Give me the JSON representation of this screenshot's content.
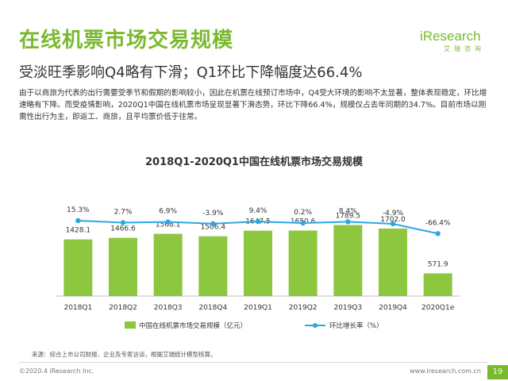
{
  "header": {
    "title": "在线机票市场交易规模",
    "logo_text": "iResearch",
    "logo_sub": "艾瑞咨询",
    "subtitle": "受淡旺季影响Q4略有下滑；Q1环比下降幅度达66.4%",
    "body": "由于以商旅为代表的出行需要受季节和假期的影响较小，因此在机票在线预订市场中，Q4受大环境的影响不太显著，整体表现稳定，环比增速略有下降。而受疫情影响，2020Q1中国在线机票市场呈现显著下滑态势，环比下降66.4%，规模仅占去年同期的34.7%。目前市场以刚需性出行为主，即返工、商旅，且平均票价低于往常。"
  },
  "chart_data": {
    "type": "bar",
    "title": "2018Q1-2020Q1中国在线机票市场交易规模",
    "categories": [
      "2018Q1",
      "2018Q2",
      "2018Q3",
      "2018Q4",
      "2019Q1",
      "2019Q2",
      "2019Q3",
      "2019Q4",
      "2020Q1e"
    ],
    "series": [
      {
        "name": "中国在线机票市场交易规模（亿元）",
        "type": "bar",
        "color": "#8dc63f",
        "values": [
          1428.1,
          1466.6,
          1568.1,
          1506.4,
          1647.5,
          1650.6,
          1789.5,
          1702.0,
          571.9
        ],
        "labels": [
          "1428.1",
          "1466.6",
          "1568.1",
          "1506.4",
          "1647.5",
          "1650.6",
          "1789.5",
          "1702.0",
          "571.9"
        ]
      },
      {
        "name": "环比增长率（%）",
        "type": "line",
        "color": "#2ea7e0",
        "values": [
          15.3,
          2.7,
          6.9,
          -3.9,
          9.4,
          0.2,
          8.4,
          -4.9,
          -66.4
        ],
        "labels": [
          "15.3%",
          "2.7%",
          "6.9%",
          "-3.9%",
          "9.4%",
          "0.2%",
          "8.4%",
          "-4.9%",
          "-66.4%"
        ]
      }
    ],
    "legend_position": "bottom",
    "grid": false
  },
  "footer": {
    "source": "来源：综合上市公司财报、企业及专家访谈，根据艾瑞统计模型核算。",
    "copyright": "©2020.4 iResearch Inc.",
    "website": "www.iresearch.com.cn",
    "page": "19"
  }
}
